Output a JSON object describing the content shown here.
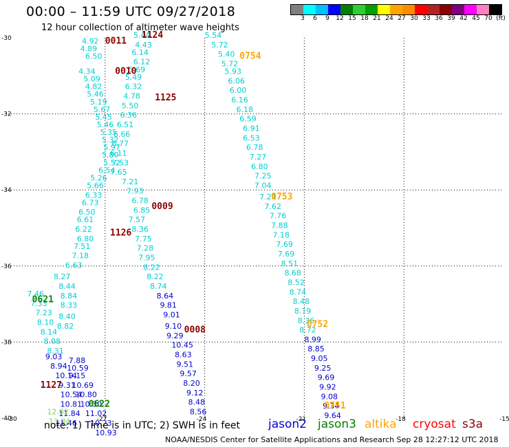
{
  "header": {
    "title": "00:00 – 11:59 UTC 09/27/2018",
    "subtitle": "12 hour collection of altimeter wave heights"
  },
  "colorbar": {
    "colors": [
      "#808080",
      "#00ffff",
      "#00bfff",
      "#0000ff",
      "#008000",
      "#32cd32",
      "#00a000",
      "#ffff00",
      "#ffa500",
      "#ff8c00",
      "#ff0000",
      "#b22222",
      "#8b0000",
      "#800080",
      "#ff00ff",
      "#ff80c0",
      "#000000"
    ],
    "labels": [
      "3",
      "6",
      "9",
      "12",
      "15",
      "18",
      "21",
      "24",
      "27",
      "30",
      "33",
      "36",
      "39",
      "42",
      "45",
      "70",
      "(ft)"
    ]
  },
  "axes": {
    "lat_labels": [
      "-30",
      "-32",
      "-34",
      "-36",
      "-38",
      "-40"
    ],
    "lon_labels": [
      "-30",
      "-27",
      "-24",
      "-21",
      "-18",
      "-15"
    ]
  },
  "chart_data": {
    "type": "scatter",
    "x_range": [
      -30,
      -15
    ],
    "y_range": [
      -40,
      -30
    ],
    "grid": true,
    "time_labels": [
      {
        "text": "0011",
        "lon": -27.0,
        "lat": -30.15,
        "color": "#8b0000"
      },
      {
        "text": "1124",
        "lon": -25.9,
        "lat": -30.0,
        "color": "#8b0000"
      },
      {
        "text": "0010",
        "lon": -26.7,
        "lat": -30.95,
        "color": "#8b0000"
      },
      {
        "text": "1125",
        "lon": -25.5,
        "lat": -31.65,
        "color": "#8b0000"
      },
      {
        "text": "0009",
        "lon": -25.6,
        "lat": -34.5,
        "color": "#8b0000"
      },
      {
        "text": "1126",
        "lon": -26.85,
        "lat": -35.2,
        "color": "#8b0000"
      },
      {
        "text": "0008",
        "lon": -24.62,
        "lat": -37.75,
        "color": "#8b0000"
      },
      {
        "text": "1127",
        "lon": -28.95,
        "lat": -39.2,
        "color": "#8b0000"
      },
      {
        "text": "0754",
        "lon": -22.95,
        "lat": -30.55,
        "color": "#ffa500"
      },
      {
        "text": "0753",
        "lon": -22.0,
        "lat": -34.25,
        "color": "#ffa500"
      },
      {
        "text": "0752",
        "lon": -20.93,
        "lat": -37.6,
        "color": "#ffa500"
      },
      {
        "text": "0751",
        "lon": -20.4,
        "lat": -39.75,
        "color": "#ffa500"
      },
      {
        "text": "0621",
        "lon": -29.2,
        "lat": -36.95,
        "color": "#008000"
      },
      {
        "text": "0622",
        "lon": -27.5,
        "lat": -39.7,
        "color": "#008000"
      }
    ],
    "series": [
      {
        "name": "altika",
        "color": "#00ced1",
        "points": [
          {
            "lon": -27.7,
            "lat": -30.15,
            "v": "4.92"
          },
          {
            "lon": -27.75,
            "lat": -30.35,
            "v": "4.89"
          },
          {
            "lon": -27.6,
            "lat": -30.55,
            "v": "6.50"
          },
          {
            "lon": -27.8,
            "lat": -30.95,
            "v": "4.34"
          },
          {
            "lon": -27.65,
            "lat": -31.15,
            "v": "5.09"
          },
          {
            "lon": -27.6,
            "lat": -31.35,
            "v": "4.82"
          },
          {
            "lon": -27.55,
            "lat": -31.55,
            "v": "5.46"
          },
          {
            "lon": -27.45,
            "lat": -31.75,
            "v": "5.19"
          },
          {
            "lon": -27.35,
            "lat": -31.95,
            "v": "5.67"
          },
          {
            "lon": -27.3,
            "lat": -32.15,
            "v": "5.45"
          },
          {
            "lon": -27.25,
            "lat": -32.35,
            "v": "5.46"
          },
          {
            "lon": -27.15,
            "lat": -32.55,
            "v": "5.35"
          },
          {
            "lon": -27.1,
            "lat": -32.75,
            "v": "5.32"
          },
          {
            "lon": -27.05,
            "lat": -32.95,
            "v": "5.97"
          },
          {
            "lon": -27.1,
            "lat": -33.15,
            "v": "5.80"
          },
          {
            "lon": -27.05,
            "lat": -33.35,
            "v": "5.52"
          },
          {
            "lon": -27.2,
            "lat": -33.55,
            "v": "6.54"
          },
          {
            "lon": -27.45,
            "lat": -33.75,
            "v": "5.26"
          },
          {
            "lon": -27.55,
            "lat": -33.95,
            "v": "5.66"
          },
          {
            "lon": -27.6,
            "lat": -34.2,
            "v": "6.33"
          },
          {
            "lon": -27.7,
            "lat": -34.4,
            "v": "6.73"
          },
          {
            "lon": -27.8,
            "lat": -34.65,
            "v": "6.50"
          },
          {
            "lon": -27.85,
            "lat": -34.85,
            "v": "6.61"
          },
          {
            "lon": -27.9,
            "lat": -35.1,
            "v": "6.22"
          },
          {
            "lon": -27.85,
            "lat": -35.35,
            "v": "6.80"
          },
          {
            "lon": -27.95,
            "lat": -35.55,
            "v": "7.51"
          },
          {
            "lon": -28.0,
            "lat": -35.8,
            "v": "7.18"
          },
          {
            "lon": -28.2,
            "lat": -36.05,
            "v": "6.63"
          },
          {
            "lon": -26.15,
            "lat": -30.0,
            "v": "5.44"
          },
          {
            "lon": -26.1,
            "lat": -30.25,
            "v": "4.43"
          },
          {
            "lon": -26.2,
            "lat": -30.45,
            "v": "6.14"
          },
          {
            "lon": -26.15,
            "lat": -30.7,
            "v": "6.12"
          },
          {
            "lon": -26.3,
            "lat": -30.9,
            "v": "5.69"
          },
          {
            "lon": -26.4,
            "lat": -31.1,
            "v": "5.49"
          },
          {
            "lon": -26.4,
            "lat": -31.35,
            "v": "6.32"
          },
          {
            "lon": -26.45,
            "lat": -31.6,
            "v": "4.78"
          },
          {
            "lon": -26.5,
            "lat": -31.85,
            "v": "5.50"
          },
          {
            "lon": -26.55,
            "lat": -32.1,
            "v": "6.36"
          },
          {
            "lon": -26.65,
            "lat": -32.35,
            "v": "6.51"
          },
          {
            "lon": -26.75,
            "lat": -32.6,
            "v": "6.66"
          },
          {
            "lon": -26.8,
            "lat": -32.85,
            "v": "6.77"
          },
          {
            "lon": -26.85,
            "lat": -33.1,
            "v": "6.11"
          },
          {
            "lon": -26.8,
            "lat": -33.35,
            "v": "7.53"
          },
          {
            "lon": -26.85,
            "lat": -33.6,
            "v": "7.65"
          },
          {
            "lon": -26.5,
            "lat": -33.85,
            "v": "7.21"
          },
          {
            "lon": -26.35,
            "lat": -34.1,
            "v": "7.93"
          },
          {
            "lon": -26.2,
            "lat": -34.35,
            "v": "6.78"
          },
          {
            "lon": -26.15,
            "lat": -34.6,
            "v": "6.85"
          },
          {
            "lon": -26.3,
            "lat": -34.85,
            "v": "7.57"
          },
          {
            "lon": -26.2,
            "lat": -35.1,
            "v": "8.36"
          },
          {
            "lon": -26.1,
            "lat": -35.35,
            "v": "7.75"
          },
          {
            "lon": -26.05,
            "lat": -35.6,
            "v": "7.28"
          },
          {
            "lon": -26.0,
            "lat": -35.85,
            "v": "7.95"
          },
          {
            "lon": -25.85,
            "lat": -36.1,
            "v": "8.22"
          },
          {
            "lon": -25.75,
            "lat": -36.35,
            "v": "8.22"
          },
          {
            "lon": -25.65,
            "lat": -36.6,
            "v": "8.74"
          },
          {
            "lon": -24.0,
            "lat": -30.0,
            "v": "5.54"
          },
          {
            "lon": -23.8,
            "lat": -30.25,
            "v": "5.72"
          },
          {
            "lon": -23.6,
            "lat": -30.5,
            "v": "5.40"
          },
          {
            "lon": -23.5,
            "lat": -30.75,
            "v": "5.72"
          },
          {
            "lon": -23.4,
            "lat": -30.95,
            "v": "5.93"
          },
          {
            "lon": -23.3,
            "lat": -31.2,
            "v": "6.06"
          },
          {
            "lon": -23.25,
            "lat": -31.45,
            "v": "6.00"
          },
          {
            "lon": -23.2,
            "lat": -31.7,
            "v": "6.16"
          },
          {
            "lon": -23.05,
            "lat": -31.95,
            "v": "6.18"
          },
          {
            "lon": -22.95,
            "lat": -32.2,
            "v": "6.59"
          },
          {
            "lon": -22.85,
            "lat": -32.45,
            "v": "6.91"
          },
          {
            "lon": -22.85,
            "lat": -32.7,
            "v": "6.53"
          },
          {
            "lon": -22.75,
            "lat": -32.95,
            "v": "6.78"
          },
          {
            "lon": -22.65,
            "lat": -33.2,
            "v": "7.27"
          },
          {
            "lon": -22.6,
            "lat": -33.45,
            "v": "6.80"
          },
          {
            "lon": -22.5,
            "lat": -33.7,
            "v": "7.25"
          },
          {
            "lon": -22.5,
            "lat": -33.95,
            "v": "7.04"
          },
          {
            "lon": -22.35,
            "lat": -34.25,
            "v": "7.21"
          },
          {
            "lon": -22.2,
            "lat": -34.5,
            "v": "7.62"
          },
          {
            "lon": -22.05,
            "lat": -34.75,
            "v": "7.76"
          },
          {
            "lon": -22.0,
            "lat": -35.0,
            "v": "7.88"
          },
          {
            "lon": -21.95,
            "lat": -35.25,
            "v": "7.18"
          },
          {
            "lon": -21.85,
            "lat": -35.5,
            "v": "7.69"
          },
          {
            "lon": -21.8,
            "lat": -35.75,
            "v": "7.69"
          },
          {
            "lon": -21.7,
            "lat": -36.0,
            "v": "8.51"
          },
          {
            "lon": -21.6,
            "lat": -36.25,
            "v": "8.68"
          },
          {
            "lon": -21.5,
            "lat": -36.5,
            "v": "8.52"
          },
          {
            "lon": -21.45,
            "lat": -36.75,
            "v": "8.74"
          },
          {
            "lon": -21.35,
            "lat": -37.0,
            "v": "8.48"
          },
          {
            "lon": -21.3,
            "lat": -37.25,
            "v": "8.19"
          },
          {
            "lon": -21.2,
            "lat": -37.5,
            "v": "8.36"
          },
          {
            "lon": -21.15,
            "lat": -37.75,
            "v": "8.72"
          },
          {
            "lon": -29.35,
            "lat": -36.8,
            "v": "7.46"
          },
          {
            "lon": -29.25,
            "lat": -37.05,
            "v": "7.33"
          },
          {
            "lon": -29.1,
            "lat": -37.3,
            "v": "7.23"
          },
          {
            "lon": -29.05,
            "lat": -37.55,
            "v": "8.10"
          },
          {
            "lon": -28.95,
            "lat": -37.8,
            "v": "8.14"
          },
          {
            "lon": -28.85,
            "lat": -38.05,
            "v": "8.08"
          },
          {
            "lon": -28.75,
            "lat": -38.3,
            "v": "8.31"
          },
          {
            "lon": -28.55,
            "lat": -36.35,
            "v": "8.27"
          },
          {
            "lon": -28.4,
            "lat": -36.6,
            "v": "8.44"
          },
          {
            "lon": -28.35,
            "lat": -36.85,
            "v": "8.84"
          },
          {
            "lon": -28.35,
            "lat": -37.1,
            "v": "8.33"
          },
          {
            "lon": -28.4,
            "lat": -37.4,
            "v": "8.40"
          },
          {
            "lon": -28.45,
            "lat": -37.65,
            "v": "8.82"
          }
        ]
      },
      {
        "name": "jason2",
        "color": "#0000cd",
        "points": [
          {
            "lon": -25.45,
            "lat": -36.85,
            "v": "8.64"
          },
          {
            "lon": -25.35,
            "lat": -37.1,
            "v": "9.81"
          },
          {
            "lon": -25.25,
            "lat": -37.35,
            "v": "9.01"
          },
          {
            "lon": -25.2,
            "lat": -37.65,
            "v": "9.10"
          },
          {
            "lon": -25.15,
            "lat": -37.9,
            "v": "9.29"
          },
          {
            "lon": -25.0,
            "lat": -38.15,
            "v": "10.45"
          },
          {
            "lon": -24.9,
            "lat": -38.4,
            "v": "8.63"
          },
          {
            "lon": -24.85,
            "lat": -38.65,
            "v": "9.51"
          },
          {
            "lon": -24.75,
            "lat": -38.9,
            "v": "9.57"
          },
          {
            "lon": -24.65,
            "lat": -39.15,
            "v": "8.20"
          },
          {
            "lon": -24.55,
            "lat": -39.4,
            "v": "9.12"
          },
          {
            "lon": -24.5,
            "lat": -39.65,
            "v": "8.48"
          },
          {
            "lon": -24.45,
            "lat": -39.9,
            "v": "8.56"
          },
          {
            "lon": -28.8,
            "lat": -38.45,
            "v": "9.03"
          },
          {
            "lon": -28.65,
            "lat": -38.7,
            "v": "8.94"
          },
          {
            "lon": -28.5,
            "lat": -38.95,
            "v": "10.14"
          },
          {
            "lon": -28.4,
            "lat": -39.2,
            "v": "9.31"
          },
          {
            "lon": -28.35,
            "lat": -39.45,
            "v": "10.54"
          },
          {
            "lon": -28.35,
            "lat": -39.7,
            "v": "10.81"
          },
          {
            "lon": -28.4,
            "lat": -39.95,
            "v": "11.84"
          },
          {
            "lon": -28.5,
            "lat": -40.2,
            "v": "11.46"
          },
          {
            "lon": -28.15,
            "lat": -38.75,
            "v": "10.59"
          },
          {
            "lon": -28.1,
            "lat": -38.95,
            "v": "9.15"
          },
          {
            "lon": -28.0,
            "lat": -39.2,
            "v": "10.69"
          },
          {
            "lon": -27.9,
            "lat": -39.45,
            "v": "10.80"
          },
          {
            "lon": -27.75,
            "lat": -39.7,
            "v": "10.30"
          },
          {
            "lon": -27.6,
            "lat": -39.95,
            "v": "11.02"
          },
          {
            "lon": -27.45,
            "lat": -40.2,
            "v": "10.23"
          },
          {
            "lon": -27.3,
            "lat": -40.45,
            "v": "10.93"
          },
          {
            "lon": -21.0,
            "lat": -38.0,
            "v": "8.99"
          },
          {
            "lon": -20.9,
            "lat": -38.25,
            "v": "8.85"
          },
          {
            "lon": -20.8,
            "lat": -38.5,
            "v": "9.05"
          },
          {
            "lon": -20.7,
            "lat": -38.75,
            "v": "9.25"
          },
          {
            "lon": -20.6,
            "lat": -39.0,
            "v": "9.69"
          },
          {
            "lon": -20.55,
            "lat": -39.25,
            "v": "9.92"
          },
          {
            "lon": -20.5,
            "lat": -39.5,
            "v": "9.08"
          },
          {
            "lon": -20.45,
            "lat": -39.75,
            "v": "9.34"
          },
          {
            "lon": -20.4,
            "lat": -40.0,
            "v": "9.64"
          },
          {
            "lon": -28.1,
            "lat": -38.55,
            "v": "7.88"
          }
        ]
      },
      {
        "name": "jason3",
        "color": "#7fd950",
        "points": [
          {
            "lon": -28.75,
            "lat": -39.9,
            "v": "12.02"
          },
          {
            "lon": -28.7,
            "lat": -40.15,
            "v": "13.04"
          }
        ]
      }
    ]
  },
  "note": "note: 1) Time is in UTC; 2) SWH is in feet",
  "legend": [
    {
      "label": "jason2",
      "color": "#0000cd"
    },
    {
      "label": "jason3",
      "color": "#008000"
    },
    {
      "label": "altika",
      "color": "#ffa500"
    },
    {
      "label": "cryosat",
      "color": "#ff0000"
    },
    {
      "label": "s3a",
      "color": "#8b0000"
    }
  ],
  "credit": "NOAA/NESDIS Center for Satellite Applications and Research   Sep 28 12:27:12 UTC 2018"
}
